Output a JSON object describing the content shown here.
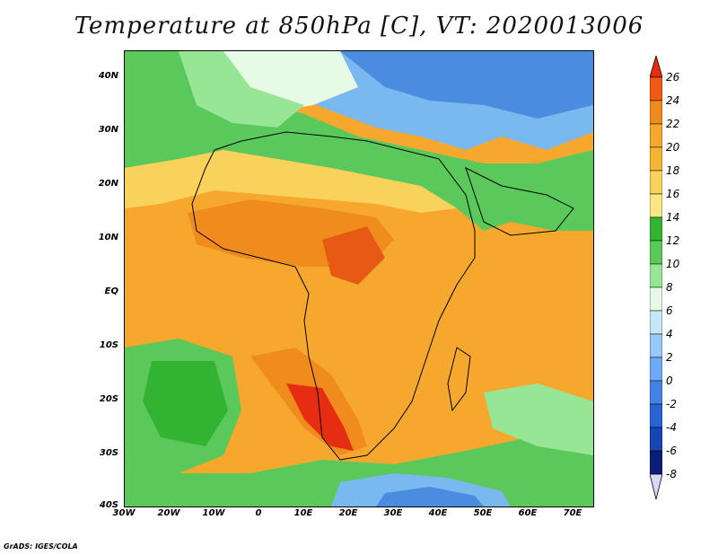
{
  "title": "Temperature at 850hPa [C], VT: 2020013006",
  "footer": "GrADS: IGES/COLA",
  "map": {
    "lon_labels": [
      "30W",
      "20W",
      "10W",
      "0",
      "10E",
      "20E",
      "30E",
      "40E",
      "50E",
      "60E",
      "70E"
    ],
    "lat_labels": [
      "40N",
      "30N",
      "20N",
      "10N",
      "EQ",
      "10S",
      "20S",
      "30S",
      "40S"
    ],
    "lon_range": [
      -30,
      75
    ],
    "lat_range": [
      -40,
      44
    ]
  },
  "colorbar": {
    "labels": [
      "26",
      "24",
      "22",
      "20",
      "18",
      "16",
      "14",
      "12",
      "10",
      "8",
      "6",
      "4",
      "2",
      "0",
      "-2",
      "-4",
      "-6",
      "-8"
    ],
    "colors": [
      "#e62d14",
      "#f05a14",
      "#f08c1e",
      "#f5b432",
      "#f8d25a",
      "#fae682",
      "#fafaaa",
      "#32b432",
      "#5ac85a",
      "#96e696",
      "#e6fae6",
      "#c8e6fa",
      "#96c8fa",
      "#6eaaf5",
      "#4682e6",
      "#2864d2",
      "#1446b4",
      "#0a1e78"
    ]
  }
}
